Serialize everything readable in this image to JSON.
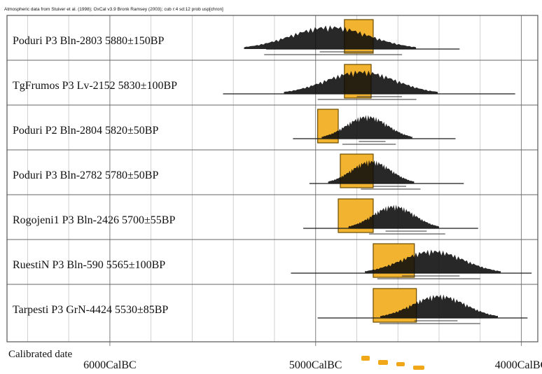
{
  "header_note": "Atmospheric data from Stuiver et al. (1998); OxCal v3.9 Bronk Ramsey (2003); cub r:4 sd:12 prob usp[chron]",
  "chart_data": {
    "type": "calibration-plot",
    "xlabel": "Calibrated date",
    "x_axis": {
      "direction": "reversed",
      "range_calBC": [
        6500,
        3920
      ],
      "ticks": [
        {
          "value": 6000,
          "label": "6000CalBC"
        },
        {
          "value": 5000,
          "label": "5000CalBC"
        },
        {
          "value": 4000,
          "label": "4000CalBC"
        }
      ],
      "grid_step": 200
    },
    "highlight_color": "#f2b430",
    "series": [
      {
        "label": "Poduri P3 Bln-2803  5880±150BP",
        "range_from": 5240,
        "range_to": 4300,
        "peak": 4930,
        "spread": 190,
        "range_1sigma": [
          4980,
          4720
        ],
        "range_2sigma": [
          5250,
          4580
        ],
        "band": [
          4860,
          4720
        ]
      },
      {
        "label": "TgFrumos P3 Lv-2152  5830±100BP",
        "range_from": 5450,
        "range_to": 4030,
        "peak": 4780,
        "spread": 170,
        "range_1sigma": [
          4800,
          4580
        ],
        "range_2sigma": [
          4990,
          4510
        ],
        "band": [
          4860,
          4730
        ]
      },
      {
        "label": "Poduri P2 Bln-2804  5820±50BP",
        "range_from": 5110,
        "range_to": 4320,
        "peak": 4750,
        "spread": 100,
        "range_1sigma": [
          4790,
          4660
        ],
        "range_2sigma": [
          4870,
          4610
        ],
        "band": [
          4990,
          4890
        ]
      },
      {
        "label": "Poduri P3 Bln-2782  5780±50BP",
        "range_from": 5030,
        "range_to": 4280,
        "peak": 4730,
        "spread": 95,
        "range_1sigma": [
          4720,
          4560
        ],
        "range_2sigma": [
          4780,
          4490
        ],
        "band": [
          4880,
          4720
        ]
      },
      {
        "label": "Rogojeni1 P3 Bln-2426  5700±55BP",
        "range_from": 5060,
        "range_to": 4210,
        "peak": 4620,
        "spread": 100,
        "range_1sigma": [
          4660,
          4460
        ],
        "range_2sigma": [
          4740,
          4370
        ],
        "band": [
          4890,
          4720
        ]
      },
      {
        "label": "RuestiN P3 Bln-590  5565±100BP",
        "range_from": 5120,
        "range_to": 3950,
        "peak": 4430,
        "spread": 150,
        "range_1sigma": [
          4580,
          4300
        ],
        "range_2sigma": [
          4700,
          4200
        ],
        "band": [
          4720,
          4520
        ]
      },
      {
        "label": "Tarpesti P3 GrN-4424  5530±85BP",
        "range_from": 4990,
        "range_to": 3970,
        "peak": 4400,
        "spread": 130,
        "range_1sigma": [
          4520,
          4310
        ],
        "range_2sigma": [
          4690,
          4200
        ],
        "band": [
          4720,
          4510
        ]
      }
    ]
  }
}
